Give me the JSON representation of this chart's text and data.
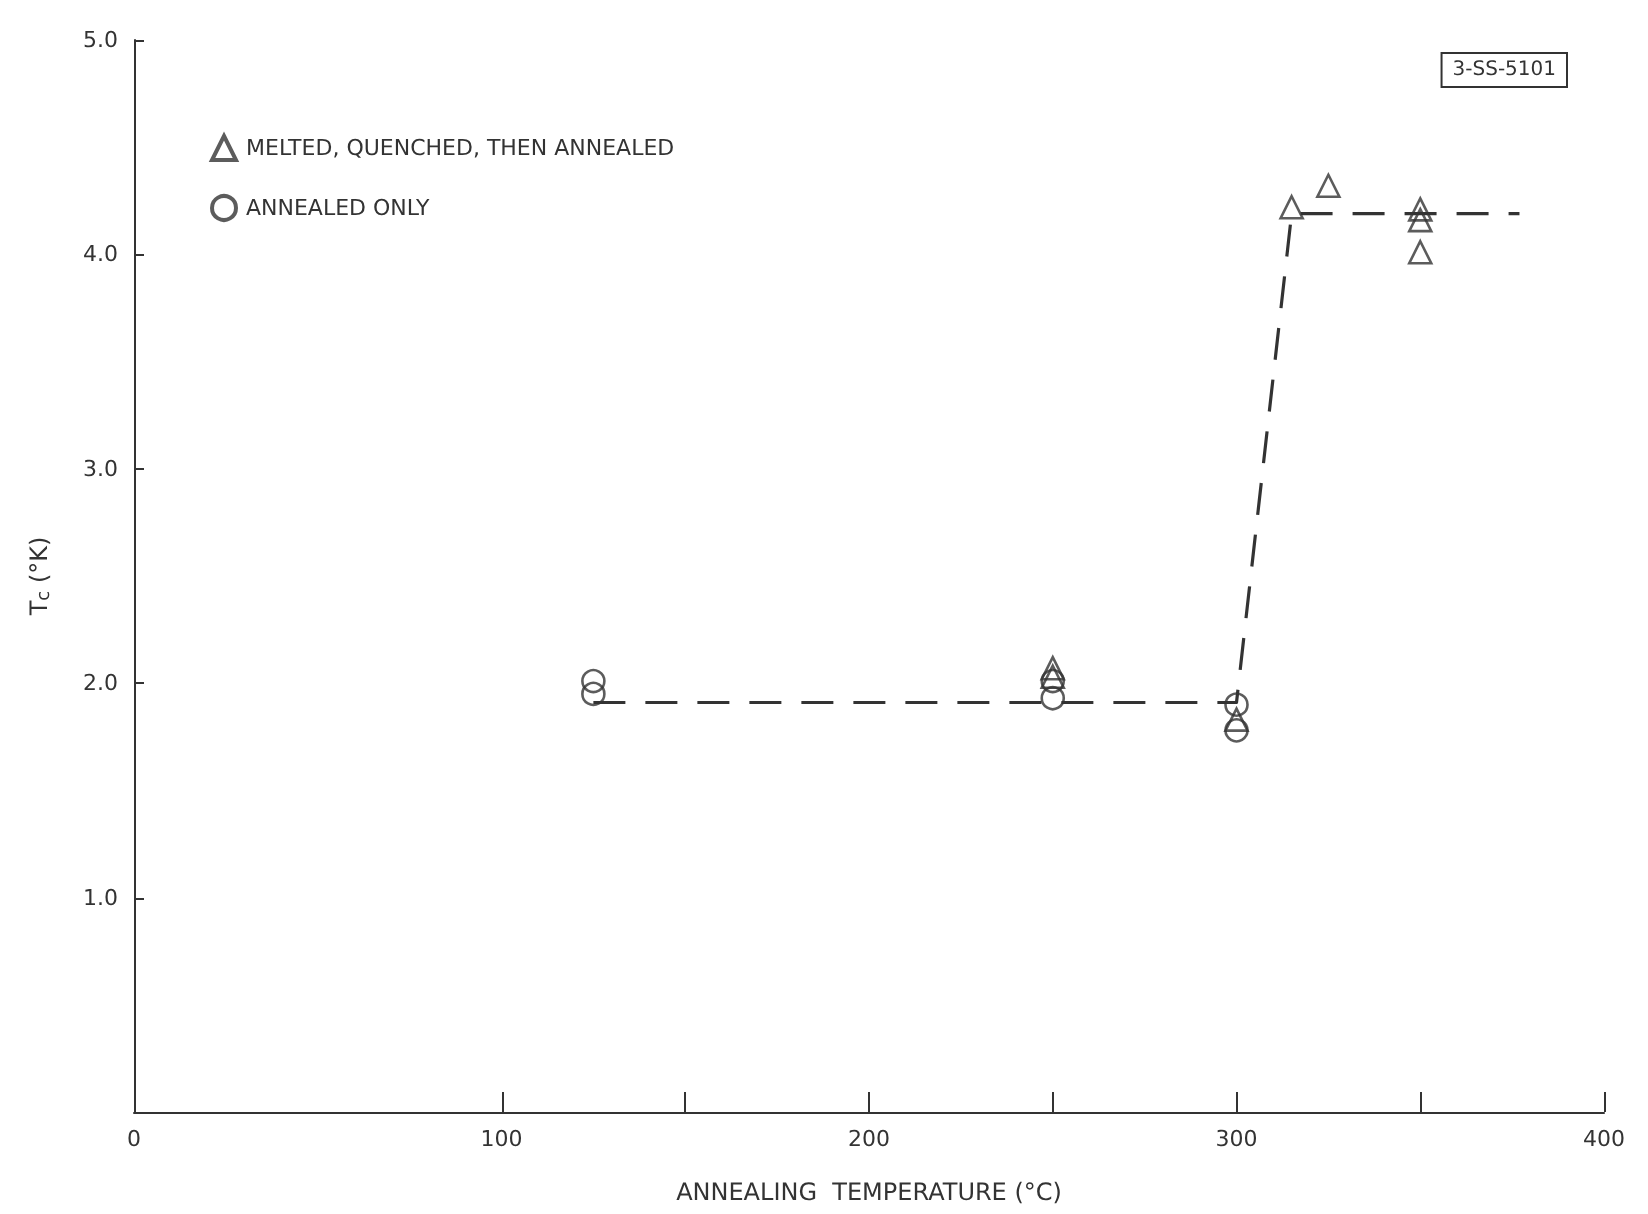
{
  "chart_data": {
    "type": "scatter",
    "xlabel": "ANNEALING  TEMPERATURE (°C)",
    "ylabel": "T$_{c}$ (°K)",
    "xlim": [
      0,
      400
    ],
    "xticks": [
      0,
      100,
      {
        "value": 150,
        "label": null
      },
      200,
      {
        "value": 250,
        "label": null
      },
      300,
      {
        "value": 350,
        "label": null
      },
      400
    ],
    "ylim": [
      0,
      5
    ],
    "yticks": [
      {
        "value": 1,
        "label": "1.0"
      },
      {
        "value": 2,
        "label": "2.0"
      },
      {
        "value": 3,
        "label": "3.0"
      },
      {
        "value": 4,
        "label": "4.0"
      },
      {
        "value": 5,
        "label": "5.0"
      }
    ],
    "grid": false,
    "legend": "top left",
    "annotations": [
      "3-SS-5101"
    ],
    "series": [
      {
        "name": "MELTED, QUENCHED, THEN ANNEALED",
        "color": "#333333",
        "marker": "triangle",
        "x": [
          250,
          250,
          300,
          315,
          325,
          350,
          350,
          350
        ],
        "values": [
          2.07,
          2.03,
          1.83,
          4.22,
          4.32,
          4.21,
          4.16,
          4.01
        ]
      },
      {
        "name": "ANNEALED ONLY",
        "color": "#333333",
        "marker": "circle",
        "x": [
          125,
          125,
          250,
          250,
          300,
          300
        ],
        "values": [
          2.01,
          1.95,
          2.01,
          1.93,
          1.9,
          1.78
        ]
      },
      {
        "type": "line",
        "color": "#333333",
        "marker": "none",
        "line_style": "dashed",
        "x": [
          125,
          300,
          315,
          377
        ],
        "values": [
          1.91,
          1.91,
          4.19,
          4.19
        ]
      }
    ]
  }
}
